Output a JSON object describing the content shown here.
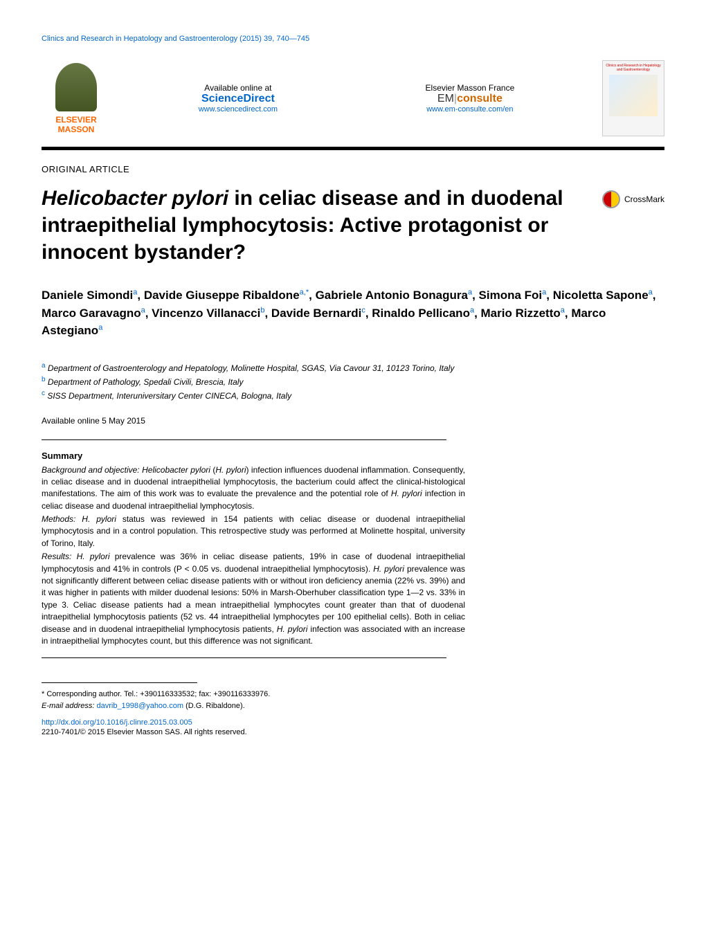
{
  "running_header": "Clinics and Research in Hepatology and Gastroenterology (2015) 39, 740—745",
  "header": {
    "available_label": "Available online at",
    "sciencedirect": "ScienceDirect",
    "sd_url": "www.sciencedirect.com",
    "elsevier_label": "Elsevier Masson France",
    "em_prefix": "EM",
    "em_suffix": "consulte",
    "em_url": "www.em-consulte.com/en",
    "publisher_top": "ELSEVIER",
    "publisher_bottom": "MASSON",
    "cover_title": "Clinics and Research in Hepatology and Gastroenterology"
  },
  "article": {
    "type": "ORIGINAL ARTICLE",
    "title_italic": "Helicobacter pylori",
    "title_rest": " in celiac disease and in duodenal intraepithelial lymphocytosis: Active protagonist or innocent bystander?",
    "crossmark": "CrossMark"
  },
  "authors_html": "Daniele Simondi<sup>a</sup>, Davide Giuseppe Ribaldone<sup>a,*</sup>, Gabriele Antonio Bonagura<sup>a</sup>, Simona Foi<sup>a</sup>, Nicoletta Sapone<sup>a</sup>, Marco Garavagno<sup>a</sup>, Vincenzo Villanacci<sup>b</sup>, Davide Bernardi<sup>c</sup>, Rinaldo Pellicano<sup>a</sup>, Mario Rizzetto<sup>a</sup>, Marco Astegiano<sup>a</sup>",
  "affiliations": [
    {
      "sup": "a",
      "text": "Department of Gastroenterology and Hepatology, Molinette Hospital, SGAS, Via Cavour 31, 10123 Torino, Italy"
    },
    {
      "sup": "b",
      "text": "Department of Pathology, Spedali Civili, Brescia, Italy"
    },
    {
      "sup": "c",
      "text": "SISS Department, Interuniversitary Center CINECA, Bologna, Italy"
    }
  ],
  "online_date": "Available online 5 May 2015",
  "summary": {
    "heading": "Summary",
    "background_label": "Background and objective:",
    "background": " Helicobacter pylori (H. pylori) infection influences duodenal inflammation. Consequently, in celiac disease and in duodenal intraepithelial lymphocytosis, the bacterium could affect the clinical-histological manifestations. The aim of this work was to evaluate the prevalence and the potential role of H. pylori infection in celiac disease and duodenal intraepithelial lymphocytosis.",
    "methods_label": "Methods:",
    "methods": " H. pylori status was reviewed in 154 patients with celiac disease or duodenal intraepithelial lymphocytosis and in a control population. This retrospective study was performed at Molinette hospital, university of Torino, Italy.",
    "results_label": "Results:",
    "results": " H. pylori prevalence was 36% in celiac disease patients, 19% in case of duodenal intraepithelial lymphocytosis and 41% in controls (P < 0.05 vs. duodenal intraepithelial lymphocytosis). H. pylori prevalence was not significantly different between celiac disease patients with or without iron deficiency anemia (22% vs. 39%) and it was higher in patients with milder duodenal lesions: 50% in Marsh-Oberhuber classification type 1—2 vs. 33% in type 3. Celiac disease patients had a mean intraepithelial lymphocytes count greater than that of duodenal intraepithelial lymphocytosis patients (52 vs. 44 intraepithelial lymphocytes per 100 epithelial cells). Both in celiac disease and in duodenal intraepithelial lymphocytosis patients, H. pylori infection was associated with an increase in intraepithelial lymphocytes count, but this difference was not significant."
  },
  "footer": {
    "corresponding": "* Corresponding author. Tel.: +390116333532; fax: +390116333976.",
    "email_label": "E-mail address:",
    "email": "davrib_1998@yahoo.com",
    "email_paren": " (D.G. Ribaldone).",
    "doi": "http://dx.doi.org/10.1016/j.clinre.2015.03.005",
    "copyright": "2210-7401/© 2015 Elsevier Masson SAS. All rights reserved."
  },
  "colors": {
    "link": "#0066cc",
    "accent": "#ff6600",
    "em": "#cc6600",
    "text": "#000000",
    "background": "#ffffff"
  },
  "typography": {
    "title_fontsize": 30,
    "authors_fontsize": 17,
    "body_fontsize": 12,
    "small_fontsize": 11
  }
}
